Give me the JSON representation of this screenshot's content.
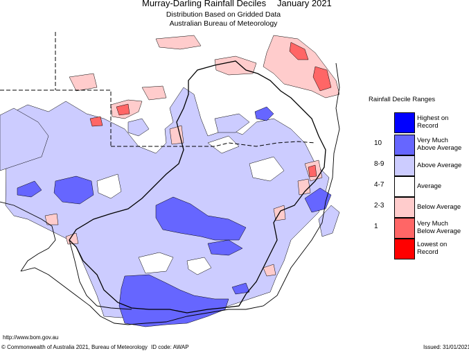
{
  "header": {
    "title": "Murray-Darling Rainfall Deciles",
    "date": "January 2021",
    "subtitle1": "Distribution Based on Gridded Data",
    "subtitle2": "Australian Bureau of Meteorology"
  },
  "legend": {
    "title": "Rainfall Decile Ranges",
    "items": [
      {
        "range": "",
        "label": "Highest on\nRecord",
        "color": "#0000ff"
      },
      {
        "range": "10",
        "label": "Very Much\nAbove Average",
        "color": "#6666ff"
      },
      {
        "range": "8-9",
        "label": "Above Average",
        "color": "#ccccff"
      },
      {
        "range": "4-7",
        "label": "Average",
        "color": "#ffffff"
      },
      {
        "range": "2-3",
        "label": "Below Average",
        "color": "#ffcccc"
      },
      {
        "range": "1",
        "label": "Very Much\nBelow Average",
        "color": "#ff6666"
      },
      {
        "range": "",
        "label": "Lowest on\nRecord",
        "color": "#ff0000"
      }
    ]
  },
  "footer": {
    "url": "http://www.bom.gov.au",
    "copyright": "© Commonwealth of Australia 2021, Bureau of Meteorology",
    "id_code": "ID code: AWAP",
    "issued": "Issued: 31/01/2021"
  }
}
